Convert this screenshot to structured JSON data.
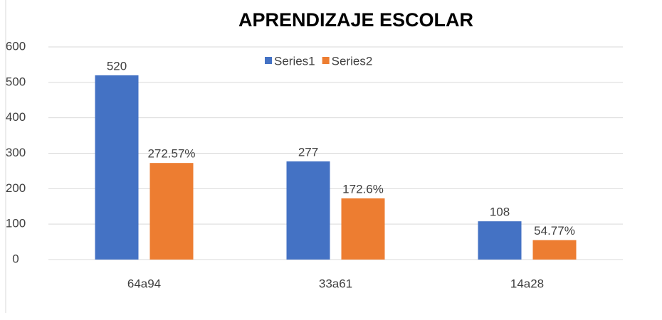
{
  "chart_data": {
    "type": "bar",
    "title": "APRENDIZAJE ESCOLAR",
    "categories": [
      "64a94",
      "33a61",
      "14a28"
    ],
    "series": [
      {
        "name": "Series1",
        "color": "#4472c4",
        "values": [
          520,
          277,
          108
        ]
      },
      {
        "name": "Series2",
        "color": "#ed7d31",
        "values": [
          272.57,
          172.6,
          54.77
        ],
        "value_labels": [
          "272.57%",
          "172.6%",
          "54.77%"
        ]
      }
    ],
    "ylim": [
      0,
      600
    ],
    "yticks": [
      0,
      100,
      200,
      300,
      400,
      500,
      600
    ],
    "grid": true,
    "legend": "top"
  }
}
